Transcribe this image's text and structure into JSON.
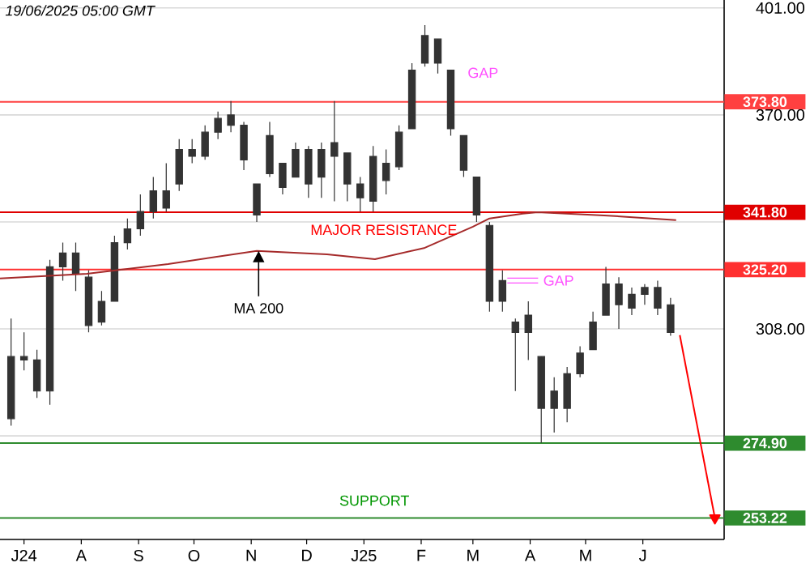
{
  "chart_data": {
    "type": "candlestick",
    "color": "#333333",
    "x": [
      "2024-06-24",
      "2024-07-01",
      "2024-07-08",
      "2024-07-15",
      "2024-07-22",
      "2024-07-29",
      "2024-08-05",
      "2024-08-12",
      "2024-08-19",
      "2024-08-26",
      "2024-09-02",
      "2024-09-09",
      "2024-09-16",
      "2024-09-23",
      "2024-09-30",
      "2024-10-07",
      "2024-10-14",
      "2024-10-21",
      "2024-10-28",
      "2024-11-04",
      "2024-11-11",
      "2024-11-18",
      "2024-11-25",
      "2024-12-02",
      "2024-12-09",
      "2024-12-16",
      "2024-12-23",
      "2024-12-30",
      "2025-01-06",
      "2025-01-13",
      "2025-01-20",
      "2025-01-27",
      "2025-02-03",
      "2025-02-10",
      "2025-02-17",
      "2025-02-24",
      "2025-03-03",
      "2025-03-10",
      "2025-03-17",
      "2025-03-24",
      "2025-03-31",
      "2025-04-07",
      "2025-04-14",
      "2025-04-21",
      "2025-04-28",
      "2025-05-05",
      "2025-05-12",
      "2025-05-19",
      "2025-05-26",
      "2025-06-02",
      "2025-06-09",
      "2025-06-16"
    ],
    "ohlc": [
      [
        282,
        311,
        280,
        300
      ],
      [
        300,
        307,
        296,
        299
      ],
      [
        299,
        302,
        288,
        290
      ],
      [
        290,
        328,
        286,
        326
      ],
      [
        326,
        333,
        322,
        330
      ],
      [
        330,
        333,
        319,
        324
      ],
      [
        323,
        325,
        307,
        309
      ],
      [
        310,
        319,
        309,
        316
      ],
      [
        316,
        335,
        316,
        333
      ],
      [
        333,
        340,
        331,
        337
      ],
      [
        337,
        347,
        335,
        342
      ],
      [
        342,
        352,
        340,
        348
      ],
      [
        348,
        356,
        342,
        343
      ],
      [
        350,
        363,
        348,
        360
      ],
      [
        360,
        363,
        356,
        358
      ],
      [
        358,
        367,
        357,
        365
      ],
      [
        365,
        371,
        363,
        369
      ],
      [
        370,
        374,
        365,
        367
      ],
      [
        367,
        368,
        354,
        357
      ],
      [
        350,
        350,
        339,
        341
      ],
      [
        353,
        368,
        352,
        364
      ],
      [
        356,
        356,
        347,
        349
      ],
      [
        352,
        362,
        352,
        360
      ],
      [
        360,
        361,
        346,
        350
      ],
      [
        352,
        362,
        346,
        360
      ],
      [
        358,
        374,
        345,
        362
      ],
      [
        359,
        359,
        345,
        350
      ],
      [
        350,
        352,
        342,
        346
      ],
      [
        345,
        361,
        342,
        358
      ],
      [
        356,
        360,
        347,
        351
      ],
      [
        355,
        367,
        354,
        365
      ],
      [
        366,
        385,
        366,
        383
      ],
      [
        385,
        396,
        384,
        393
      ],
      [
        392,
        392,
        382,
        385
      ],
      [
        383,
        383,
        364,
        366
      ],
      [
        364,
        364,
        352,
        354
      ],
      [
        352,
        352,
        339,
        341
      ],
      [
        338,
        339,
        313,
        316
      ],
      [
        316,
        325,
        313,
        322
      ],
      [
        310,
        311,
        290,
        307
      ],
      [
        307,
        316,
        299,
        312
      ],
      [
        300,
        300,
        275,
        285
      ],
      [
        285,
        294,
        278,
        290
      ],
      [
        285,
        297,
        281,
        295
      ],
      [
        295,
        303,
        294,
        301
      ],
      [
        302,
        313,
        302,
        310
      ],
      [
        312,
        326,
        312,
        321
      ],
      [
        321,
        323,
        308,
        315
      ],
      [
        314,
        320,
        312,
        318
      ],
      [
        318,
        321,
        315,
        320
      ],
      [
        320,
        322,
        312,
        314
      ],
      [
        315,
        317,
        306,
        307
      ]
    ],
    "series": [
      {
        "type": "line",
        "color": "#a52a2a",
        "x": [
          "2024-06-18",
          "2024-08-04",
          "2024-09-17",
          "2024-11-04",
          "2024-12-12",
          "2025-01-07",
          "2025-02-03",
          "2025-03-01",
          "2025-03-10",
          "2025-03-28",
          "2025-04-05",
          "2025-05-11",
          "2025-06-19"
        ],
        "values": [
          322.6,
          324,
          326.8,
          330.6,
          329.6,
          328.2,
          331.5,
          337.6,
          340,
          341.4,
          341.8,
          340.9,
          339.5
        ]
      },
      {
        "type": "line",
        "color": "#ff0000",
        "x": [
          "2025-06-21",
          "2025-07-10"
        ],
        "values": [
          306.2,
          253.22
        ]
      }
    ],
    "xlim": [
      "2024-06-18",
      "2025-07-15"
    ],
    "xticks": [
      {
        "value": "2024-07-01",
        "label": "J24"
      },
      {
        "value": "2024-08-01",
        "label": "A"
      },
      {
        "value": "2024-09-01",
        "label": "S"
      },
      {
        "value": "2024-10-01",
        "label": "O"
      },
      {
        "value": "2024-11-01",
        "label": "N"
      },
      {
        "value": "2024-12-01",
        "label": "D"
      },
      {
        "value": "2025-01-01",
        "label": "J25"
      },
      {
        "value": "2025-02-01",
        "label": "F"
      },
      {
        "value": "2025-03-01",
        "label": "M"
      },
      {
        "value": "2025-04-01",
        "label": "A"
      },
      {
        "value": "2025-05-01",
        "label": "M"
      },
      {
        "value": "2025-06-01",
        "label": "J"
      }
    ],
    "ylim": [
      247,
      403.3
    ],
    "yticks": [
      {
        "value": 401,
        "label": "401.00"
      },
      {
        "value": 370,
        "label": "370.00"
      },
      {
        "value": 339,
        "label": null
      },
      {
        "value": 308,
        "label": "308.00"
      },
      {
        "value": 277,
        "label": null
      }
    ],
    "grid": "y",
    "ref_lines": [
      {
        "axis": "y",
        "value": 373.8,
        "label": "373.80",
        "color": "#ff4040"
      },
      {
        "axis": "y",
        "value": 341.8,
        "label": "341.80",
        "color": "#e00000"
      },
      {
        "axis": "y",
        "value": 325.2,
        "label": "325.20",
        "color": "#ff3030"
      },
      {
        "axis": "y",
        "value": 274.9,
        "label": "274.90",
        "color": "#2e8b2e"
      },
      {
        "axis": "y",
        "value": 253.22,
        "label": "253.22",
        "color": "#2e8b2e"
      }
    ],
    "annotations": [
      "19/06/2025 05:00 GMT",
      "MAJOR RESISTANCE",
      "SUPPORT",
      "GAP",
      {
        "text": "GAP",
        "x": "2025-03-17",
        "y": 322
      },
      {
        "text": "MA 200",
        "x": "2024-11-05",
        "y": 330.6
      }
    ]
  }
}
